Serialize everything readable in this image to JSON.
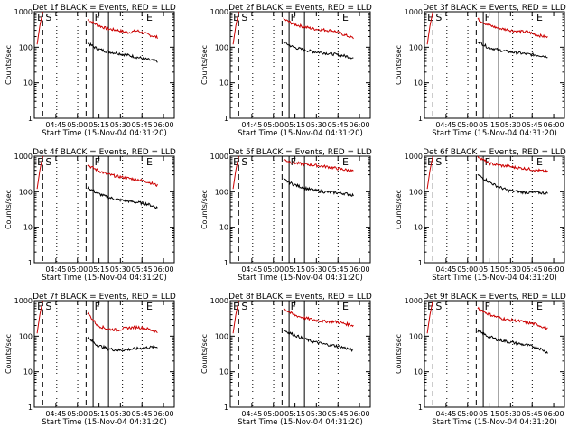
{
  "colors": {
    "events": "#000000",
    "lld": "#cc0000",
    "axis": "#000000"
  },
  "common": {
    "ylabel": "Counts/sec",
    "xlabel": "Start Time (15-Nov-04 04:31:20)",
    "x_ticks": [
      "04:45",
      "05:00",
      "05:15",
      "05:30",
      "05:45",
      "06:00"
    ],
    "y_ticks": [
      "1",
      "10",
      "100",
      "1000"
    ],
    "markers": [
      "E",
      "S",
      "F",
      "E"
    ]
  },
  "chart_data": [
    {
      "type": "line",
      "title": "Det 1f BLACK = Events, RED = LLD",
      "yscale": "log",
      "ylim": [
        1,
        1000
      ],
      "series": [
        {
          "values": [
            600,
            420,
            330,
            300,
            260,
            290,
            230,
            190
          ]
        },
        {
          "values": [
            130,
            90,
            75,
            68,
            60,
            52,
            45,
            40
          ]
        }
      ]
    },
    {
      "type": "line",
      "title": "Det 2f BLACK = Events, RED = LLD",
      "yscale": "log",
      "ylim": [
        1,
        1000
      ],
      "series": [
        {
          "values": [
            620,
            450,
            380,
            330,
            310,
            290,
            230,
            180
          ]
        },
        {
          "values": [
            140,
            100,
            85,
            75,
            70,
            64,
            58,
            50
          ]
        }
      ]
    },
    {
      "type": "line",
      "title": "Det 3f BLACK = Events, RED = LLD",
      "yscale": "log",
      "ylim": [
        1,
        1000
      ],
      "series": [
        {
          "values": [
            620,
            430,
            350,
            310,
            280,
            270,
            220,
            190
          ]
        },
        {
          "values": [
            150,
            100,
            85,
            75,
            70,
            64,
            60,
            55
          ]
        }
      ]
    },
    {
      "type": "line",
      "title": "Det 4f BLACK = Events, RED = LLD",
      "yscale": "log",
      "ylim": [
        1,
        1000
      ],
      "series": [
        {
          "values": [
            560,
            400,
            310,
            270,
            240,
            220,
            190,
            150
          ]
        },
        {
          "values": [
            130,
            90,
            70,
            60,
            55,
            50,
            45,
            35
          ]
        }
      ]
    },
    {
      "type": "line",
      "title": "Det 5f BLACK = Events, RED = LLD",
      "yscale": "log",
      "ylim": [
        1,
        1000
      ],
      "series": [
        {
          "values": [
            800,
            650,
            600,
            560,
            520,
            470,
            420,
            380
          ]
        },
        {
          "values": [
            220,
            160,
            130,
            110,
            100,
            95,
            90,
            80
          ]
        }
      ]
    },
    {
      "type": "line",
      "title": "Det 6f BLACK = Events, RED = LLD",
      "yscale": "log",
      "ylim": [
        1,
        1000
      ],
      "series": [
        {
          "values": [
            1000,
            650,
            560,
            520,
            470,
            440,
            400,
            360
          ]
        },
        {
          "values": [
            300,
            200,
            140,
            110,
            100,
            95,
            95,
            90
          ]
        }
      ]
    },
    {
      "type": "line",
      "title": "Det 7f BLACK = Events, RED = LLD",
      "yscale": "log",
      "ylim": [
        1,
        1000
      ],
      "series": [
        {
          "values": [
            450,
            200,
            160,
            150,
            170,
            180,
            160,
            130
          ]
        },
        {
          "values": [
            90,
            55,
            45,
            40,
            42,
            45,
            48,
            50
          ]
        }
      ]
    },
    {
      "type": "line",
      "title": "Det 8f BLACK = Events, RED = LLD",
      "yscale": "log",
      "ylim": [
        1,
        1000
      ],
      "series": [
        {
          "values": [
            600,
            400,
            330,
            290,
            260,
            260,
            230,
            200
          ]
        },
        {
          "values": [
            150,
            110,
            85,
            70,
            60,
            55,
            48,
            40
          ]
        }
      ]
    },
    {
      "type": "line",
      "title": "Det 9f BLACK = Events, RED = LLD",
      "yscale": "log",
      "ylim": [
        1,
        1000
      ],
      "series": [
        {
          "values": [
            620,
            430,
            340,
            290,
            270,
            240,
            210,
            160
          ]
        },
        {
          "values": [
            140,
            100,
            80,
            70,
            62,
            55,
            48,
            35
          ]
        }
      ]
    }
  ]
}
